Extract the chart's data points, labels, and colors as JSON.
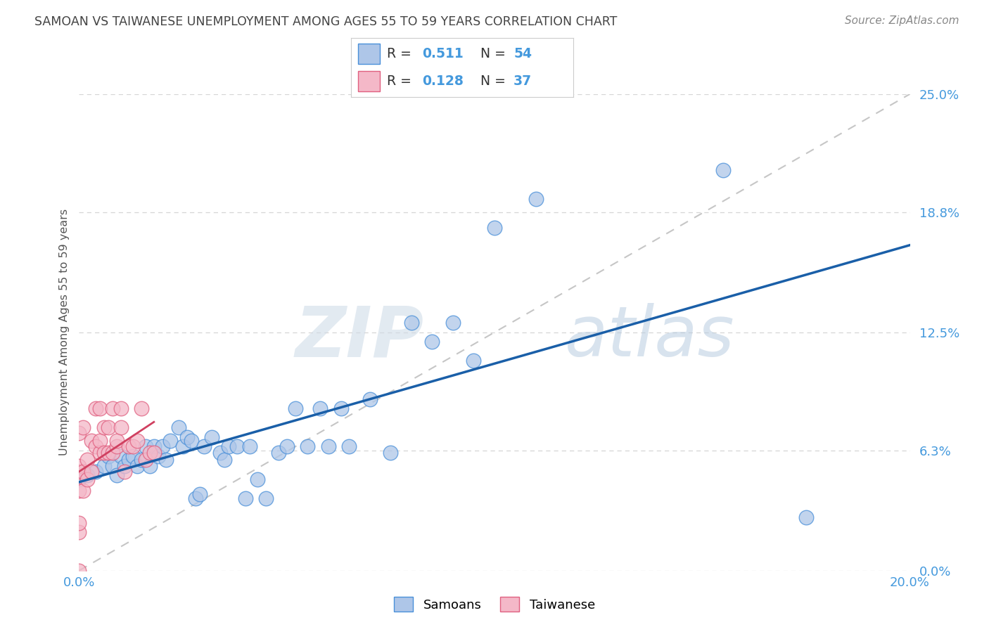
{
  "title": "SAMOAN VS TAIWANESE UNEMPLOYMENT AMONG AGES 55 TO 59 YEARS CORRELATION CHART",
  "source": "Source: ZipAtlas.com",
  "ylabel": "Unemployment Among Ages 55 to 59 years",
  "watermark_zip": "ZIP",
  "watermark_atlas": "atlas",
  "xlim": [
    0.0,
    0.2
  ],
  "ylim": [
    0.0,
    0.25
  ],
  "xticks": [
    0.0,
    0.04,
    0.08,
    0.12,
    0.16,
    0.2
  ],
  "xtick_labels": [
    "0.0%",
    "",
    "",
    "",
    "",
    "20.0%"
  ],
  "ytick_labels_right": [
    "0.0%",
    "6.3%",
    "12.5%",
    "18.8%",
    "25.0%"
  ],
  "yticks_right": [
    0.0,
    0.063,
    0.125,
    0.188,
    0.25
  ],
  "samoans_R": 0.511,
  "samoans_N": 54,
  "taiwanese_R": 0.128,
  "taiwanese_N": 37,
  "samoans_color": "#aec6e8",
  "taiwanese_color": "#f4b8c8",
  "samoans_edge_color": "#4a90d9",
  "taiwanese_edge_color": "#e06080",
  "samoans_line_color": "#1a5fa8",
  "taiwanese_line_color": "#d04060",
  "diagonal_color": "#c0c0c0",
  "background_color": "#ffffff",
  "grid_color": "#cccccc",
  "title_color": "#444444",
  "right_label_color": "#4499dd",
  "legend_label_color": "#4499dd",
  "source_color": "#888888",
  "samoans_x": [
    0.0,
    0.002,
    0.004,
    0.006,
    0.007,
    0.008,
    0.009,
    0.01,
    0.011,
    0.012,
    0.013,
    0.014,
    0.015,
    0.016,
    0.017,
    0.018,
    0.019,
    0.02,
    0.021,
    0.022,
    0.024,
    0.025,
    0.026,
    0.027,
    0.028,
    0.029,
    0.03,
    0.032,
    0.034,
    0.035,
    0.036,
    0.038,
    0.04,
    0.041,
    0.043,
    0.045,
    0.048,
    0.05,
    0.052,
    0.055,
    0.058,
    0.06,
    0.063,
    0.065,
    0.07,
    0.075,
    0.08,
    0.085,
    0.09,
    0.095,
    0.1,
    0.11,
    0.155,
    0.175
  ],
  "samoans_y": [
    0.048,
    0.05,
    0.052,
    0.055,
    0.06,
    0.055,
    0.05,
    0.06,
    0.055,
    0.058,
    0.06,
    0.055,
    0.058,
    0.065,
    0.055,
    0.065,
    0.06,
    0.065,
    0.058,
    0.068,
    0.075,
    0.065,
    0.07,
    0.068,
    0.038,
    0.04,
    0.065,
    0.07,
    0.062,
    0.058,
    0.065,
    0.065,
    0.038,
    0.065,
    0.048,
    0.038,
    0.062,
    0.065,
    0.085,
    0.065,
    0.085,
    0.065,
    0.085,
    0.065,
    0.09,
    0.062,
    0.13,
    0.12,
    0.13,
    0.11,
    0.18,
    0.195,
    0.21,
    0.028
  ],
  "taiwanese_x": [
    0.0,
    0.0,
    0.0,
    0.0,
    0.0,
    0.0,
    0.0,
    0.001,
    0.001,
    0.001,
    0.002,
    0.002,
    0.003,
    0.003,
    0.004,
    0.004,
    0.005,
    0.005,
    0.005,
    0.006,
    0.006,
    0.007,
    0.007,
    0.008,
    0.008,
    0.009,
    0.009,
    0.01,
    0.01,
    0.011,
    0.012,
    0.013,
    0.014,
    0.015,
    0.016,
    0.017,
    0.018
  ],
  "taiwanese_y": [
    0.0,
    0.02,
    0.025,
    0.042,
    0.052,
    0.055,
    0.072,
    0.042,
    0.052,
    0.075,
    0.048,
    0.058,
    0.052,
    0.068,
    0.065,
    0.085,
    0.062,
    0.068,
    0.085,
    0.062,
    0.075,
    0.062,
    0.075,
    0.085,
    0.062,
    0.065,
    0.068,
    0.075,
    0.085,
    0.052,
    0.065,
    0.065,
    0.068,
    0.085,
    0.058,
    0.062,
    0.062
  ]
}
